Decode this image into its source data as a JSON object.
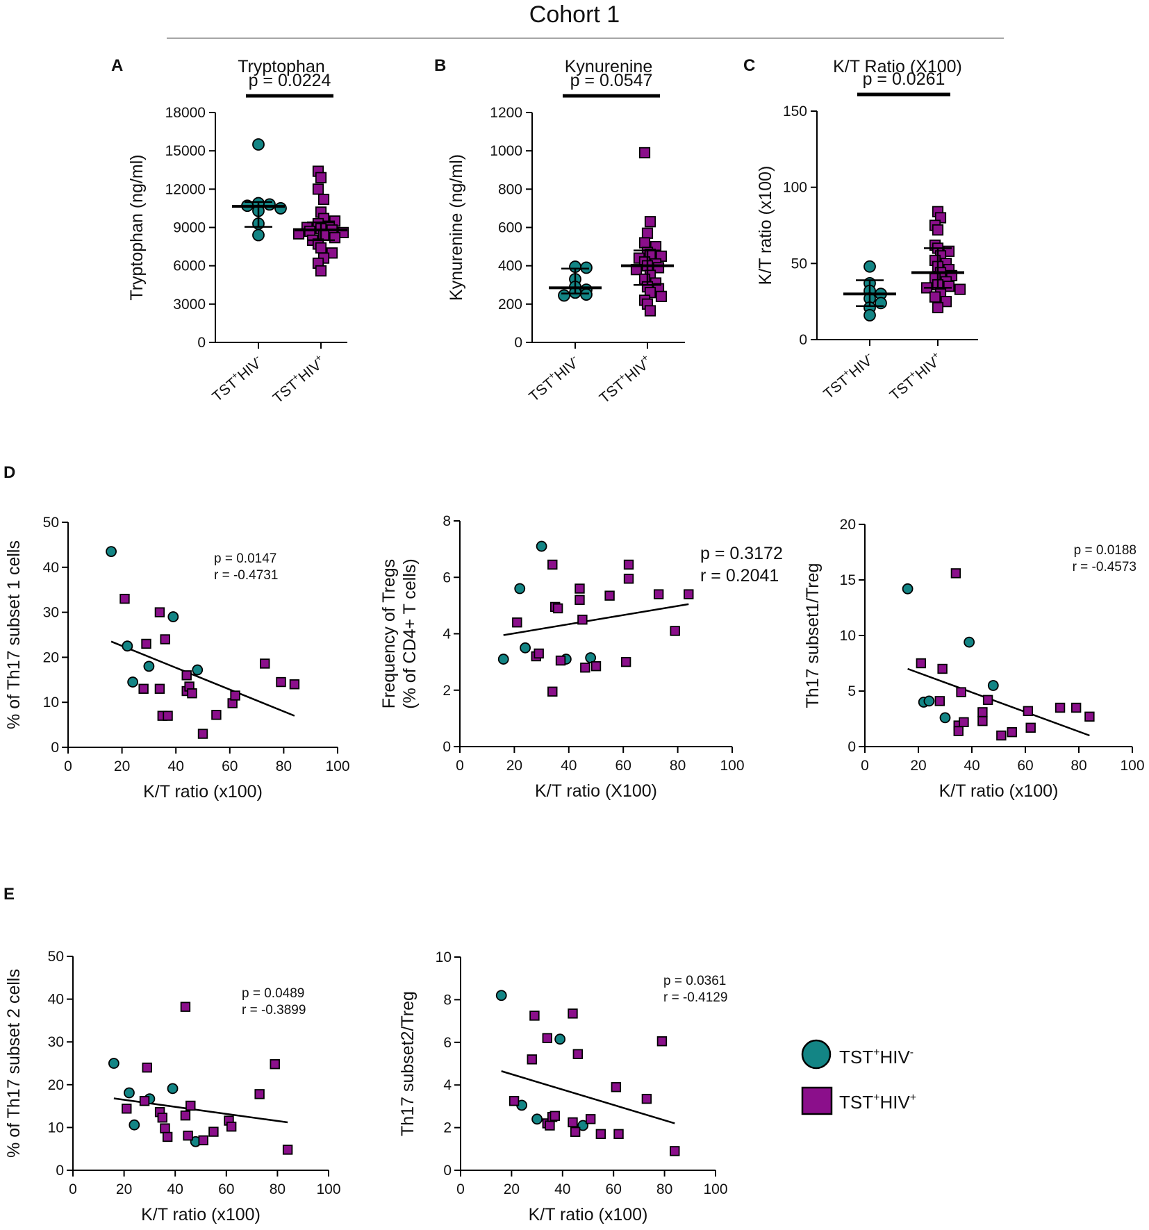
{
  "figure_title": "Cohort 1",
  "colors": {
    "hiv_neg": "#138585",
    "hiv_pos": "#8B0F8B",
    "line": "#000000",
    "rule": "#888888"
  },
  "legend": {
    "hiv_neg": {
      "label_parts": [
        "TST",
        "+",
        "HIV",
        "-"
      ],
      "symbol": "circle-icon"
    },
    "hiv_pos": {
      "label_parts": [
        "TST",
        "+",
        "HIV",
        "+"
      ],
      "symbol": "square-icon"
    }
  },
  "chart_data": [
    {
      "id": "A",
      "panel_label": "A",
      "type": "scatter",
      "title": "Tryptophan",
      "ylabel": "Tryptophan (ng/ml)",
      "pvalue_text": "p = 0.0224",
      "ylim": [
        0,
        18000
      ],
      "yticks": [
        "0",
        "3000",
        "6000",
        "9000",
        "12000",
        "15000",
        "18000"
      ],
      "categories": [
        "TST+HIV-",
        "TST+HIV+"
      ],
      "category_labels": [
        [
          "TST",
          "+",
          "HIV",
          "-"
        ],
        [
          "TST",
          "+",
          "HIV",
          "+"
        ]
      ],
      "series": [
        {
          "group": "hiv_neg",
          "values": [
            15500,
            10900,
            10800,
            10700,
            10500,
            10300,
            9300,
            8400
          ],
          "median": 10650,
          "iqr": [
            9050,
            11000
          ]
        },
        {
          "group": "hiv_pos",
          "values": [
            13400,
            12900,
            12000,
            11200,
            10200,
            9700,
            9500,
            9300,
            9100,
            9000,
            8900,
            8800,
            8700,
            8600,
            8500,
            8400,
            8200,
            8000,
            7700,
            7400,
            7000,
            6600,
            6200,
            5600
          ],
          "median": 8800,
          "iqr": [
            8000,
            9400
          ]
        }
      ]
    },
    {
      "id": "B",
      "panel_label": "B",
      "type": "scatter",
      "title": "Kynurenine",
      "ylabel": "Kynurenine (ng/ml)",
      "pvalue_text": "p = 0.0547",
      "ylim": [
        0,
        1200
      ],
      "yticks": [
        "0",
        "200",
        "400",
        "600",
        "800",
        "1000",
        "1200"
      ],
      "categories": [
        "TST+HIV-",
        "TST+HIV+"
      ],
      "category_labels": [
        [
          "TST",
          "+",
          "HIV",
          "-"
        ],
        [
          "TST",
          "+",
          "HIV",
          "+"
        ]
      ],
      "series": [
        {
          "group": "hiv_neg",
          "values": [
            395,
            390,
            330,
            290,
            275,
            260,
            250,
            245
          ],
          "median": 285,
          "iqr": [
            255,
            385
          ]
        },
        {
          "group": "hiv_pos",
          "values": [
            990,
            630,
            570,
            520,
            500,
            470,
            460,
            450,
            440,
            420,
            410,
            400,
            390,
            380,
            350,
            330,
            310,
            290,
            280,
            260,
            240,
            220,
            200,
            165
          ],
          "median": 400,
          "iqr": [
            300,
            480
          ]
        }
      ]
    },
    {
      "id": "C",
      "panel_label": "C",
      "type": "scatter",
      "title": "K/T Ratio (X100)",
      "ylabel": "K/T ratio (x100)",
      "pvalue_text": "p = 0.0261",
      "ylim": [
        0,
        150
      ],
      "yticks": [
        "0",
        "50",
        "100",
        "150"
      ],
      "categories": [
        "TST+HIV-",
        "TST+HIV+"
      ],
      "category_labels": [
        [
          "TST",
          "+",
          "HIV",
          "-"
        ],
        [
          "TST",
          "+",
          "HIV",
          "+"
        ]
      ],
      "series": [
        {
          "group": "hiv_neg",
          "values": [
            48,
            37,
            32,
            30,
            27,
            24,
            21,
            16
          ],
          "median": 30,
          "iqr": [
            22,
            39
          ]
        },
        {
          "group": "hiv_pos",
          "values": [
            84,
            80,
            75,
            72,
            62,
            60,
            58,
            55,
            52,
            50,
            48,
            46,
            44,
            42,
            40,
            38,
            36,
            35,
            34,
            33,
            30,
            28,
            25,
            21
          ],
          "median": 44,
          "iqr": [
            34,
            60
          ]
        }
      ]
    },
    {
      "id": "D1",
      "panel_label": "D",
      "type": "scatter",
      "xlabel": "K/T ratio (x100)",
      "ylabel": "% of Th17 subset 1 cells",
      "xlim": [
        0,
        100
      ],
      "ylim": [
        0,
        50
      ],
      "xticks": [
        "0",
        "20",
        "40",
        "60",
        "80",
        "100"
      ],
      "yticks": [
        "0",
        "10",
        "20",
        "30",
        "40",
        "50"
      ],
      "stat_lines": [
        "p = 0.0147",
        "r = -0.4731"
      ],
      "regression": [
        [
          16,
          23.5
        ],
        [
          84,
          7
        ]
      ],
      "series": [
        {
          "group": "hiv_neg",
          "x": [
            16,
            22,
            24,
            30,
            39,
            48
          ],
          "y": [
            43.5,
            22.5,
            14.5,
            18,
            29,
            17.2
          ]
        },
        {
          "group": "hiv_pos",
          "x": [
            21,
            28,
            29,
            34,
            34,
            35,
            36,
            37,
            44,
            44,
            45,
            46,
            50,
            55,
            61,
            62,
            73,
            79,
            84
          ],
          "y": [
            33,
            13,
            23,
            30,
            13,
            7,
            24,
            7,
            16,
            12.5,
            13.5,
            12,
            3,
            7.2,
            9.8,
            11.5,
            18.6,
            14.5,
            14
          ]
        }
      ]
    },
    {
      "id": "D2",
      "panel_label": "",
      "type": "scatter",
      "xlabel": "K/T ratio (X100)",
      "ylabel_lines": [
        "Frequency of Tregs",
        "(% of CD4+ T cells)"
      ],
      "xlim": [
        0,
        100
      ],
      "ylim": [
        0,
        8
      ],
      "xticks": [
        "0",
        "20",
        "40",
        "60",
        "80",
        "100"
      ],
      "yticks": [
        "0",
        "2",
        "4",
        "6",
        "8"
      ],
      "stat_lines": [
        "p = 0.3172",
        "r = 0.2041"
      ],
      "regression": [
        [
          16,
          3.95
        ],
        [
          84,
          5.05
        ]
      ],
      "series": [
        {
          "group": "hiv_neg",
          "x": [
            16,
            22,
            24,
            30,
            39,
            48
          ],
          "y": [
            3.1,
            5.6,
            3.5,
            7.1,
            3.1,
            3.15
          ]
        },
        {
          "group": "hiv_pos",
          "x": [
            21,
            28,
            29,
            34,
            34,
            35,
            36,
            37,
            44,
            44,
            45,
            46,
            50,
            55,
            61,
            62,
            62,
            73,
            79,
            84
          ],
          "y": [
            4.4,
            3.2,
            3.3,
            6.45,
            1.95,
            4.95,
            4.9,
            3.05,
            5.6,
            5.2,
            4.5,
            2.8,
            2.85,
            5.35,
            3.0,
            6.45,
            5.95,
            5.4,
            4.1,
            5.4
          ]
        }
      ]
    },
    {
      "id": "D3",
      "panel_label": "",
      "type": "scatter",
      "xlabel": "K/T ratio (x100)",
      "ylabel": "Th17 subset1/Treg",
      "xlim": [
        0,
        100
      ],
      "ylim": [
        0,
        20
      ],
      "xticks": [
        "0",
        "20",
        "40",
        "60",
        "80",
        "100"
      ],
      "yticks": [
        "0",
        "5",
        "10",
        "15",
        "20"
      ],
      "stat_lines": [
        "p = 0.0188",
        "r = -0.4573"
      ],
      "regression": [
        [
          16,
          7
        ],
        [
          84,
          1
        ]
      ],
      "series": [
        {
          "group": "hiv_neg",
          "x": [
            16,
            22,
            24,
            30,
            39,
            48
          ],
          "y": [
            14.2,
            4.0,
            4.1,
            2.6,
            9.4,
            5.5
          ]
        },
        {
          "group": "hiv_pos",
          "x": [
            21,
            28,
            29,
            34,
            35,
            35,
            36,
            37,
            44,
            44,
            46,
            51,
            55,
            61,
            62,
            73,
            79,
            84
          ],
          "y": [
            7.5,
            4.1,
            7.0,
            15.6,
            1.9,
            1.4,
            4.9,
            2.2,
            3.1,
            2.3,
            4.2,
            1.0,
            1.3,
            3.2,
            1.7,
            3.5,
            3.5,
            2.7
          ]
        }
      ]
    },
    {
      "id": "E1",
      "panel_label": "E",
      "type": "scatter",
      "xlabel": "K/T ratio (x100)",
      "ylabel": "% of Th17 subset 2 cells",
      "xlim": [
        0,
        100
      ],
      "ylim": [
        0,
        50
      ],
      "xticks": [
        "0",
        "20",
        "40",
        "60",
        "80",
        "100"
      ],
      "yticks": [
        "0",
        "10",
        "20",
        "30",
        "40",
        "50"
      ],
      "stat_lines": [
        "p = 0.0489",
        "r = -0.3899"
      ],
      "regression": [
        [
          16,
          16.8
        ],
        [
          84,
          11.2
        ]
      ],
      "series": [
        {
          "group": "hiv_neg",
          "x": [
            16,
            22,
            24,
            30,
            39,
            48
          ],
          "y": [
            25,
            18.1,
            10.6,
            16.7,
            19.1,
            6.7
          ]
        },
        {
          "group": "hiv_pos",
          "x": [
            21,
            28,
            29,
            34,
            35,
            36,
            37,
            44,
            44,
            45,
            46,
            51,
            55,
            61,
            62,
            73,
            79,
            84
          ],
          "y": [
            14.4,
            16.2,
            24,
            13.6,
            12.3,
            9.8,
            7.8,
            38.2,
            12.8,
            8.1,
            15.1,
            7,
            9,
            11.6,
            10.2,
            17.8,
            24.8,
            4.8
          ]
        }
      ]
    },
    {
      "id": "E2",
      "panel_label": "",
      "type": "scatter",
      "xlabel": "K/T ratio (x100)",
      "ylabel": "Th17 subset2/Treg",
      "xlim": [
        0,
        100
      ],
      "ylim": [
        0,
        10
      ],
      "xticks": [
        "0",
        "20",
        "40",
        "60",
        "80",
        "100"
      ],
      "yticks": [
        "0",
        "2",
        "4",
        "6",
        "8",
        "10"
      ],
      "stat_lines": [
        "p = 0.0361",
        "r = -0.4129"
      ],
      "regression": [
        [
          16,
          4.65
        ],
        [
          84,
          2.2
        ]
      ],
      "series": [
        {
          "group": "hiv_neg",
          "x": [
            16,
            24,
            30,
            39,
            48
          ],
          "y": [
            8.2,
            3.05,
            2.4,
            6.15,
            2.1
          ]
        },
        {
          "group": "hiv_pos",
          "x": [
            21,
            28,
            29,
            34,
            34,
            35,
            36,
            37,
            44,
            44,
            45,
            46,
            51,
            55,
            61,
            62,
            73,
            79,
            84
          ],
          "y": [
            3.25,
            5.2,
            7.25,
            6.2,
            2.2,
            2.1,
            2.5,
            2.55,
            7.35,
            2.25,
            1.8,
            5.45,
            2.4,
            1.7,
            3.9,
            1.7,
            3.35,
            6.05,
            0.9
          ]
        }
      ]
    }
  ]
}
